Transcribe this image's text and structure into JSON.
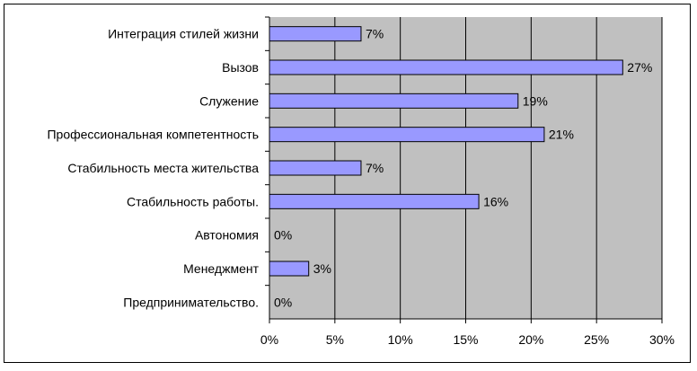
{
  "chart_data": {
    "type": "bar",
    "orientation": "horizontal",
    "categories": [
      "Интеграция стилей жизни",
      "Вызов",
      "Служение",
      "Профессиональная компетентность",
      "Стабильность места жительства",
      "Стабильность работы.",
      "Автономия",
      "Менеджмент",
      "Предпринимательство."
    ],
    "values": [
      7,
      27,
      19,
      21,
      7,
      16,
      0,
      3,
      0
    ],
    "value_labels": [
      "7%",
      "27%",
      "19%",
      "21%",
      "7%",
      "16%",
      "0%",
      "3%",
      "0%"
    ],
    "xlim": [
      0,
      30
    ],
    "xticks": [
      "0%",
      "5%",
      "10%",
      "15%",
      "20%",
      "25%",
      "30%"
    ],
    "grid": true,
    "colors": {
      "bar": "#9999ff",
      "plot_bg": "#c0c0c0",
      "grid": "#000000"
    }
  }
}
